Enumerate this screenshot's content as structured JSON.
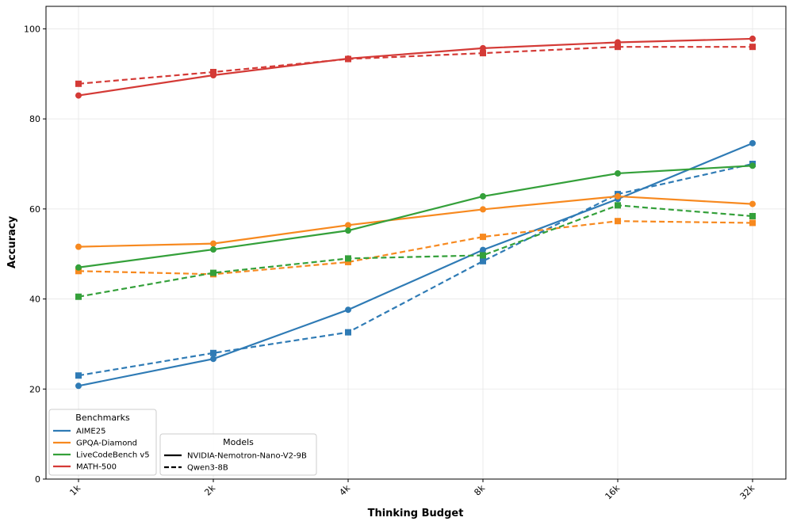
{
  "chart_data": {
    "type": "line",
    "xlabel": "Thinking Budget",
    "ylabel": "Accuracy",
    "categories": [
      "1k",
      "2k",
      "4k",
      "8k",
      "16k",
      "32k"
    ],
    "ylim": [
      0,
      105
    ],
    "yticks": [
      0,
      20,
      40,
      60,
      80,
      100
    ],
    "grid": true,
    "benchmark_legend": {
      "title": "Benchmarks",
      "placement": "bottom-left",
      "entries": [
        {
          "name": "AIME25",
          "color": "#2f7bb5"
        },
        {
          "name": "GPQA-Diamond",
          "color": "#f7891f"
        },
        {
          "name": "LiveCodeBench v5",
          "color": "#34a03a"
        },
        {
          "name": "MATH-500",
          "color": "#d43a36"
        }
      ]
    },
    "model_legend": {
      "title": "Models",
      "placement": "bottom-left",
      "entries": [
        {
          "name": "NVIDIA-Nemotron-Nano-V2-9B",
          "style": "solid",
          "marker": "circle"
        },
        {
          "name": "Qwen3-8B",
          "style": "dashed",
          "marker": "square"
        }
      ]
    },
    "series": [
      {
        "benchmark": "AIME25",
        "model": "NVIDIA-Nemotron-Nano-V2-9B",
        "values": [
          20.7,
          26.7,
          37.6,
          50.9,
          62.2,
          74.6
        ]
      },
      {
        "benchmark": "AIME25",
        "model": "Qwen3-8B",
        "values": [
          23.0,
          28.0,
          32.6,
          48.4,
          63.3,
          70.0
        ]
      },
      {
        "benchmark": "GPQA-Diamond",
        "model": "NVIDIA-Nemotron-Nano-V2-9B",
        "values": [
          51.6,
          52.3,
          56.4,
          59.9,
          62.8,
          61.1
        ]
      },
      {
        "benchmark": "GPQA-Diamond",
        "model": "Qwen3-8B",
        "values": [
          46.2,
          45.5,
          48.2,
          53.8,
          57.3,
          56.9
        ]
      },
      {
        "benchmark": "LiveCodeBench v5",
        "model": "NVIDIA-Nemotron-Nano-V2-9B",
        "values": [
          47.0,
          51.0,
          55.2,
          62.8,
          67.9,
          69.6
        ]
      },
      {
        "benchmark": "LiveCodeBench v5",
        "model": "Qwen3-8B",
        "values": [
          40.5,
          45.8,
          49.0,
          49.7,
          60.8,
          58.4
        ]
      },
      {
        "benchmark": "MATH-500",
        "model": "NVIDIA-Nemotron-Nano-V2-9B",
        "values": [
          85.2,
          89.7,
          93.4,
          95.7,
          97.0,
          97.8
        ]
      },
      {
        "benchmark": "MATH-500",
        "model": "Qwen3-8B",
        "values": [
          87.8,
          90.4,
          93.3,
          94.6,
          96.0,
          96.0
        ]
      }
    ]
  }
}
